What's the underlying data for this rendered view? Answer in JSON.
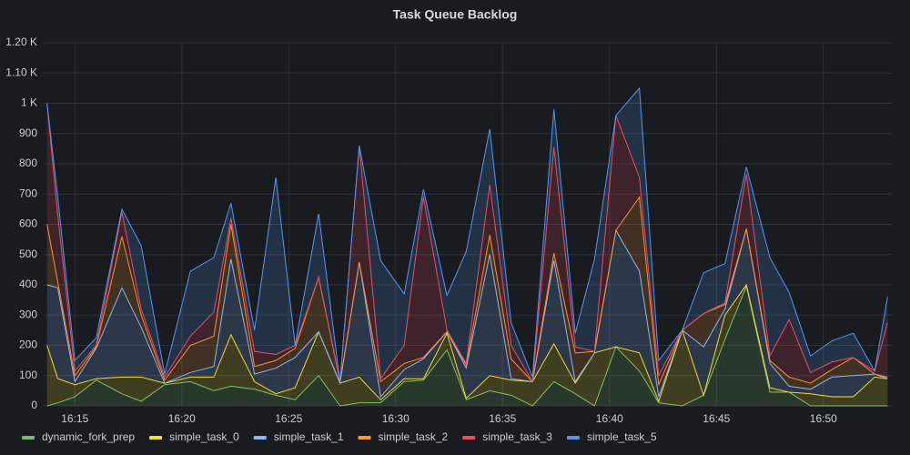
{
  "chart_data": {
    "type": "stacked_area",
    "title": "Task Queue Backlog",
    "x": [
      13.7,
      14.2,
      15,
      16,
      17.2,
      18.1,
      19.2,
      20.4,
      21.5,
      22.3,
      23.4,
      24.4,
      25.3,
      26.4,
      27.4,
      28.3,
      29.3,
      30.4,
      31.3,
      32.4,
      33.3,
      34.4,
      35.4,
      36.4,
      37.4,
      38.4,
      39.3,
      40.3,
      41.4,
      42.3,
      43.4,
      44.4,
      45.4,
      46.4,
      47.5,
      48.4,
      49.4,
      50.4,
      51.4,
      52.4,
      53
    ],
    "xlim": [
      13.5,
      53.2
    ],
    "xticks": [
      {
        "value": 15,
        "label": "16:15"
      },
      {
        "value": 20,
        "label": "16:20"
      },
      {
        "value": 25,
        "label": "16:25"
      },
      {
        "value": 30,
        "label": "16:30"
      },
      {
        "value": 35,
        "label": "16:35"
      },
      {
        "value": 40,
        "label": "16:40"
      },
      {
        "value": 45,
        "label": "16:45"
      },
      {
        "value": 50,
        "label": "16:50"
      }
    ],
    "ylim": [
      0,
      1200
    ],
    "yticks": [
      0,
      100,
      200,
      300,
      400,
      500,
      600,
      700,
      800,
      900,
      {
        "value": 1000,
        "label": "1 K"
      },
      {
        "value": 1100,
        "label": "1.10 K"
      },
      {
        "value": 1200,
        "label": "1.20 K"
      }
    ],
    "grid": true,
    "stacked": true,
    "legend": "bottom-left",
    "series": [
      {
        "name": "dynamic_fork_prep",
        "color": "#73bf69",
        "values": [
          0,
          10,
          30,
          85,
          40,
          15,
          70,
          80,
          50,
          65,
          55,
          35,
          20,
          100,
          0,
          10,
          10,
          80,
          85,
          185,
          20,
          50,
          35,
          0,
          80,
          40,
          0,
          195,
          115,
          10,
          0,
          35,
          220,
          395,
          45,
          45,
          0,
          0,
          0,
          0,
          0
        ]
      },
      {
        "name": "simple_task_0",
        "color": "#fade2a",
        "values": [
          200,
          80,
          40,
          5,
          55,
          80,
          5,
          15,
          45,
          170,
          25,
          5,
          40,
          145,
          75,
          85,
          10,
          10,
          5,
          55,
          5,
          50,
          50,
          80,
          125,
          35,
          175,
          0,
          60,
          5,
          250,
          0,
          80,
          5,
          15,
          0,
          40,
          30,
          30,
          95,
          90
        ]
      },
      {
        "name": "simple_task_1",
        "color": "#8ab8ff",
        "values": [
          200,
          300,
          10,
          100,
          295,
          165,
          0,
          15,
          35,
          250,
          25,
          85,
          100,
          0,
          0,
          380,
          10,
          30,
          65,
          5,
          100,
          400,
          5,
          0,
          275,
          5,
          0,
          385,
          270,
          15,
          0,
          160,
          20,
          185,
          80,
          20,
          15,
          65,
          70,
          10,
          0
        ]
      },
      {
        "name": "simple_task_2",
        "color": "#ff9830",
        "values": [
          200,
          20,
          20,
          5,
          170,
          40,
          10,
          90,
          100,
          115,
          25,
          25,
          30,
          180,
          5,
          0,
          50,
          20,
          5,
          0,
          10,
          65,
          65,
          0,
          25,
          95,
          5,
          0,
          245,
          40,
          0,
          110,
          15,
          0,
          10,
          30,
          20,
          25,
          60,
          0,
          5
        ]
      },
      {
        "name": "simple_task_3",
        "color": "#f2495c",
        "values": [
          400,
          220,
          15,
          5,
          80,
          20,
          10,
          30,
          80,
          20,
          50,
          20,
          10,
          0,
          0,
          385,
          10,
          60,
          530,
          5,
          5,
          165,
          45,
          0,
          350,
          20,
          0,
          380,
          65,
          30,
          0,
          0,
          5,
          180,
          15,
          190,
          35,
          25,
          0,
          10,
          180
        ]
      },
      {
        "name": "simple_task_5",
        "color": "#5794f2",
        "values": [
          0,
          60,
          35,
          25,
          10,
          210,
          10,
          215,
          180,
          50,
          70,
          585,
          0,
          210,
          0,
          0,
          390,
          170,
          25,
          115,
          370,
          185,
          75,
          15,
          125,
          45,
          305,
          0,
          295,
          50,
          0,
          135,
          130,
          25,
          325,
          90,
          55,
          70,
          80,
          0,
          85
        ]
      }
    ]
  }
}
